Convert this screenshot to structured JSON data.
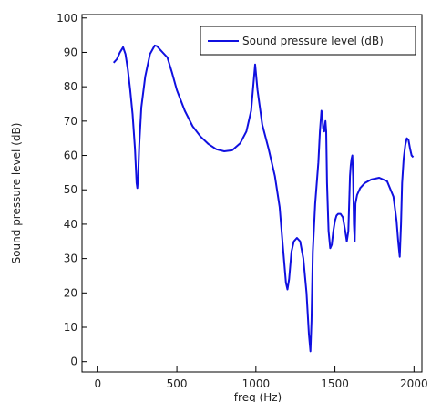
{
  "chart_data": {
    "type": "line",
    "title": "",
    "xlabel": "freq (Hz)",
    "ylabel": "Sound pressure level (dB)",
    "xlim": [
      -100,
      2050
    ],
    "ylim": [
      -3,
      101
    ],
    "xticks": [
      0,
      500,
      1000,
      1500,
      2000
    ],
    "yticks": [
      0,
      10,
      20,
      30,
      40,
      50,
      60,
      70,
      80,
      90,
      100
    ],
    "grid": false,
    "legend_position": "top-right",
    "series": [
      {
        "name": "Sound pressure level (dB)",
        "color": "#1010e0",
        "x": [
          100,
          120,
          140,
          160,
          175,
          190,
          205,
          220,
          235,
          245,
          250,
          255,
          262,
          275,
          300,
          330,
          360,
          375,
          390,
          410,
          440,
          470,
          500,
          550,
          600,
          650,
          700,
          750,
          800,
          850,
          900,
          940,
          970,
          985,
          995,
          1010,
          1040,
          1080,
          1120,
          1150,
          1170,
          1190,
          1200,
          1210,
          1225,
          1240,
          1260,
          1280,
          1300,
          1320,
          1335,
          1345,
          1352,
          1360,
          1375,
          1395,
          1405,
          1415,
          1420,
          1425,
          1432,
          1440,
          1445,
          1450,
          1460,
          1470,
          1480,
          1490,
          1500,
          1510,
          1520,
          1535,
          1550,
          1565,
          1575,
          1585,
          1595,
          1600,
          1605,
          1610,
          1615,
          1620,
          1625,
          1630,
          1640,
          1660,
          1690,
          1730,
          1780,
          1830,
          1870,
          1890,
          1900,
          1910,
          1918,
          1925,
          1935,
          1945,
          1955,
          1965,
          1975,
          1985,
          1995
        ],
        "y": [
          87,
          88,
          90,
          91.5,
          89.5,
          85,
          79,
          72,
          62,
          52,
          50.5,
          54,
          63,
          74,
          83,
          89.5,
          92,
          91.8,
          91,
          90,
          88.5,
          84,
          79,
          73,
          68.5,
          65.5,
          63.3,
          61.8,
          61.2,
          61.5,
          63.5,
          67,
          73,
          81,
          86.5,
          79,
          69,
          62,
          54,
          45,
          34,
          23,
          21,
          24,
          32,
          35,
          36,
          35,
          30,
          20,
          8,
          3,
          12,
          32,
          46,
          58,
          67,
          73,
          72,
          68,
          67,
          70,
          67,
          52,
          38,
          33,
          34,
          38,
          41,
          42.5,
          43,
          43,
          42,
          38,
          35,
          38,
          54,
          57,
          59,
          60,
          54,
          40,
          35,
          46,
          48.5,
          50.5,
          52,
          53,
          53.5,
          52.5,
          48,
          41,
          35,
          30.5,
          40,
          52,
          59,
          63,
          65,
          64.5,
          62,
          60,
          59.5
        ]
      }
    ]
  }
}
